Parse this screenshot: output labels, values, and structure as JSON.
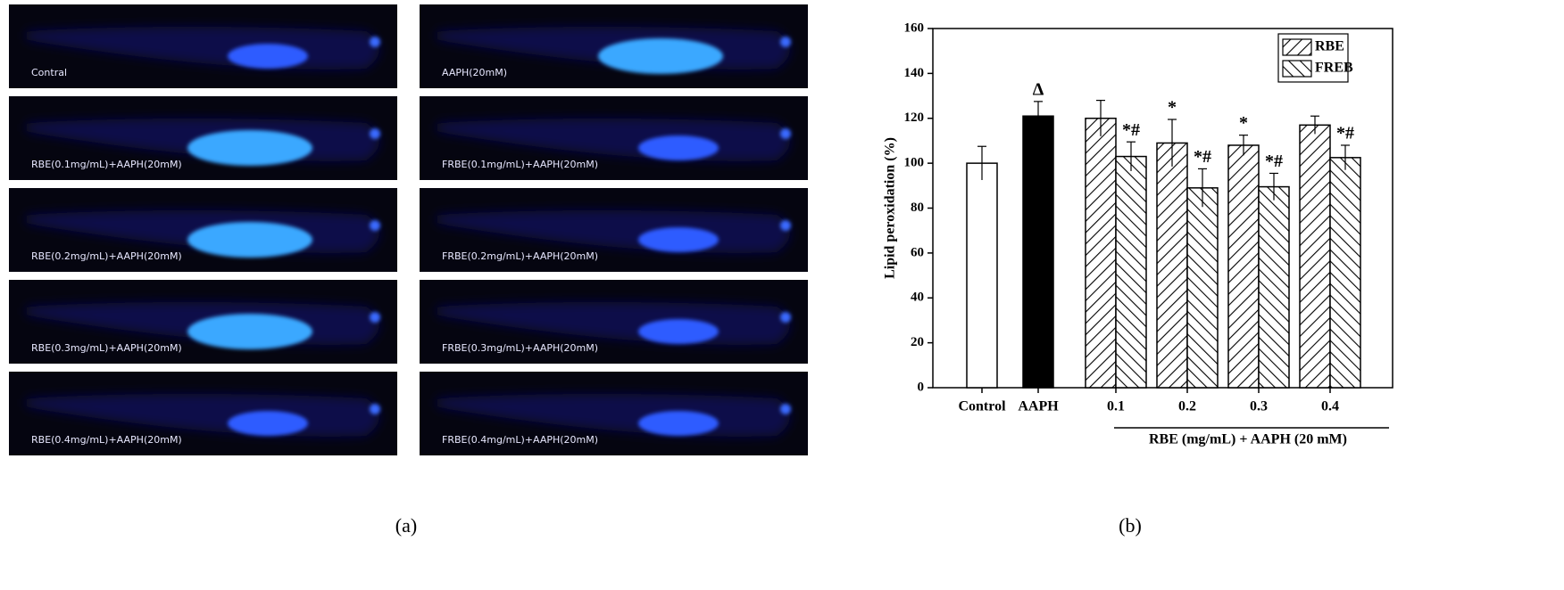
{
  "images": {
    "labels": [
      "Contral",
      "AAPH(20mM)",
      "RBE(0.1mg/mL)+AAPH(20mM)",
      "FRBE(0.1mg/mL)+AAPH(20mM)",
      "RBE(0.2mg/mL)+AAPH(20mM)",
      "FRBE(0.2mg/mL)+AAPH(20mM)",
      "RBE(0.3mg/mL)+AAPH(20mM)",
      "FRBE(0.3mg/mL)+AAPH(20mM)",
      "RBE(0.4mg/mL)+AAPH(20mM)",
      "FRBE(0.4mg/mL)+AAPH(20mM)"
    ]
  },
  "panel_labels": [
    "(a)",
    "(b)"
  ],
  "chart_data": {
    "type": "bar",
    "y_label": "Lipid peroxidation (%)",
    "x_label": "RBE (mg/mL) + AAPH (20 mM)",
    "categories": [
      "Control",
      "AAPH",
      "0.1",
      "0.2",
      "0.3",
      "0.4"
    ],
    "values": [
      100,
      121,
      null,
      null,
      null,
      null
    ],
    "errors": [
      7.5,
      6.5,
      null,
      null,
      null,
      null
    ],
    "colors": [
      "#ffffff",
      "#000000",
      null,
      null,
      null,
      null
    ],
    "annotations": [
      null,
      "Δ",
      null,
      null,
      null,
      null
    ],
    "series": [
      {
        "name": "RBE",
        "color": "#000000",
        "hatch": "backslash",
        "values": [
          null,
          null,
          120,
          109,
          108,
          117
        ],
        "errors": [
          null,
          null,
          8,
          10.5,
          4.5,
          4
        ],
        "annotations": [
          null,
          null,
          null,
          "*",
          "*",
          null
        ]
      },
      {
        "name": "FREB",
        "color": "#000000",
        "hatch": "slash",
        "values": [
          null,
          null,
          103,
          89,
          89.5,
          102.5
        ],
        "errors": [
          null,
          null,
          6.5,
          8.5,
          6,
          5.5
        ],
        "annotations": [
          null,
          null,
          "*#",
          "*#",
          "*#",
          "*#"
        ]
      }
    ],
    "ylim": [
      0,
      160
    ],
    "yticks": [
      0,
      20,
      40,
      60,
      80,
      100,
      120,
      140,
      160
    ],
    "legend": "upper right"
  }
}
